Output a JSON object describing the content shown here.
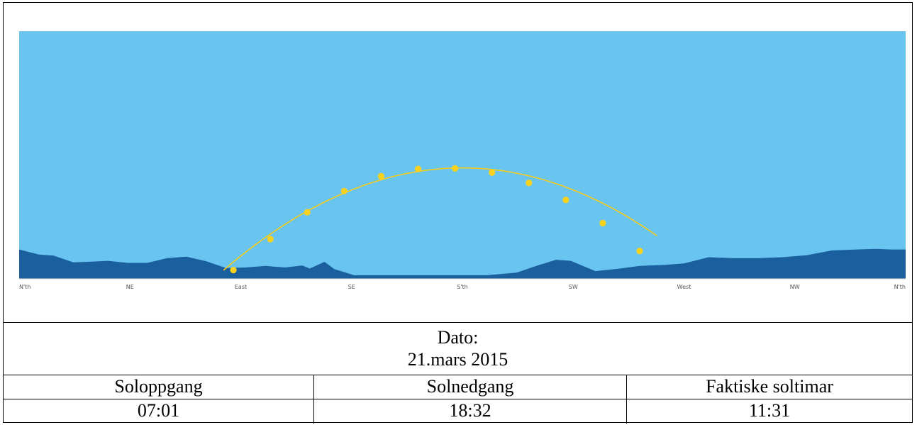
{
  "chart_data": {
    "type": "line",
    "title": "",
    "x_categories": [
      "N'th",
      "NE",
      "East",
      "SE",
      "S'th",
      "SW",
      "West",
      "NW",
      "N'th"
    ],
    "xlim": [
      0,
      360
    ],
    "sun_path": {
      "name": "",
      "points": [
        [
          87,
          1.7
        ],
        [
          102,
          7.7
        ],
        [
          117,
          12.9
        ],
        [
          132,
          17.0
        ],
        [
          147,
          19.9
        ],
        [
          162,
          21.3
        ],
        [
          177,
          21.4
        ],
        [
          192,
          20.6
        ],
        [
          207,
          18.6
        ],
        [
          222,
          15.3
        ],
        [
          237,
          10.8
        ],
        [
          252,
          5.4
        ]
      ],
      "curve_range": [
        83,
        259
      ],
      "curve_peak": [
        180,
        21.5
      ]
    },
    "horizon": [
      [
        0,
        5.7
      ],
      [
        8,
        4.7
      ],
      [
        14,
        4.5
      ],
      [
        22,
        3.2
      ],
      [
        28,
        3.3
      ],
      [
        36,
        3.5
      ],
      [
        44,
        3.1
      ],
      [
        52,
        3.1
      ],
      [
        60,
        4.0
      ],
      [
        68,
        4.3
      ],
      [
        76,
        3.4
      ],
      [
        84,
        2.1
      ],
      [
        92,
        2.2
      ],
      [
        100,
        2.5
      ],
      [
        108,
        2.2
      ],
      [
        115,
        2.6
      ],
      [
        118,
        2.0
      ],
      [
        124,
        3.3
      ],
      [
        128,
        1.9
      ],
      [
        136,
        0.7
      ],
      [
        144,
        0.7
      ],
      [
        156,
        0.7
      ],
      [
        168,
        0.7
      ],
      [
        180,
        0.7
      ],
      [
        190,
        0.7
      ],
      [
        202,
        1.2
      ],
      [
        210,
        2.5
      ],
      [
        218,
        3.7
      ],
      [
        224,
        3.5
      ],
      [
        234,
        1.5
      ],
      [
        244,
        2.0
      ],
      [
        252,
        2.5
      ],
      [
        262,
        2.7
      ],
      [
        270,
        3.0
      ],
      [
        280,
        4.2
      ],
      [
        290,
        4.0
      ],
      [
        300,
        4.0
      ],
      [
        310,
        4.2
      ],
      [
        320,
        4.6
      ],
      [
        330,
        5.5
      ],
      [
        340,
        5.7
      ],
      [
        348,
        5.8
      ],
      [
        354,
        5.7
      ],
      [
        360,
        5.7
      ]
    ],
    "ylim": [
      0,
      48
    ],
    "colors": {
      "sky": "#6ac4f0",
      "terrain": "#1a5f9e",
      "sun": "#f5cc1a",
      "sun_dot": "#f9d21e"
    }
  },
  "date": {
    "label": "Dato:",
    "value": "21.mars 2015"
  },
  "table": {
    "headers": [
      "Soloppgang",
      "Solnedgang",
      "Faktiske soltimar"
    ],
    "values": [
      "07:01",
      "18:32",
      "11:31"
    ]
  }
}
